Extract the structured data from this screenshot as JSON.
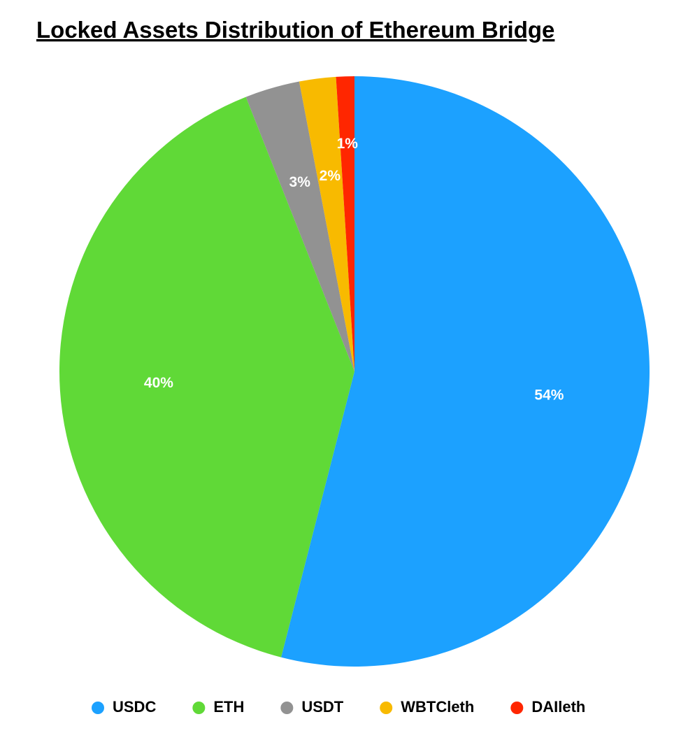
{
  "chart_data": {
    "type": "pie",
    "title": "Locked Assets Distribution of Ethereum Bridge",
    "categories": [
      "USDC",
      "ETH",
      "USDT",
      "WBTCleth",
      "DAIleth"
    ],
    "values": [
      54,
      40,
      3,
      2,
      1
    ],
    "value_labels": [
      "54%",
      "40%",
      "3%",
      "2%",
      "1%"
    ],
    "colors": [
      "#1ca1ff",
      "#60d937",
      "#929292",
      "#f8ba00",
      "#ff2600"
    ]
  }
}
